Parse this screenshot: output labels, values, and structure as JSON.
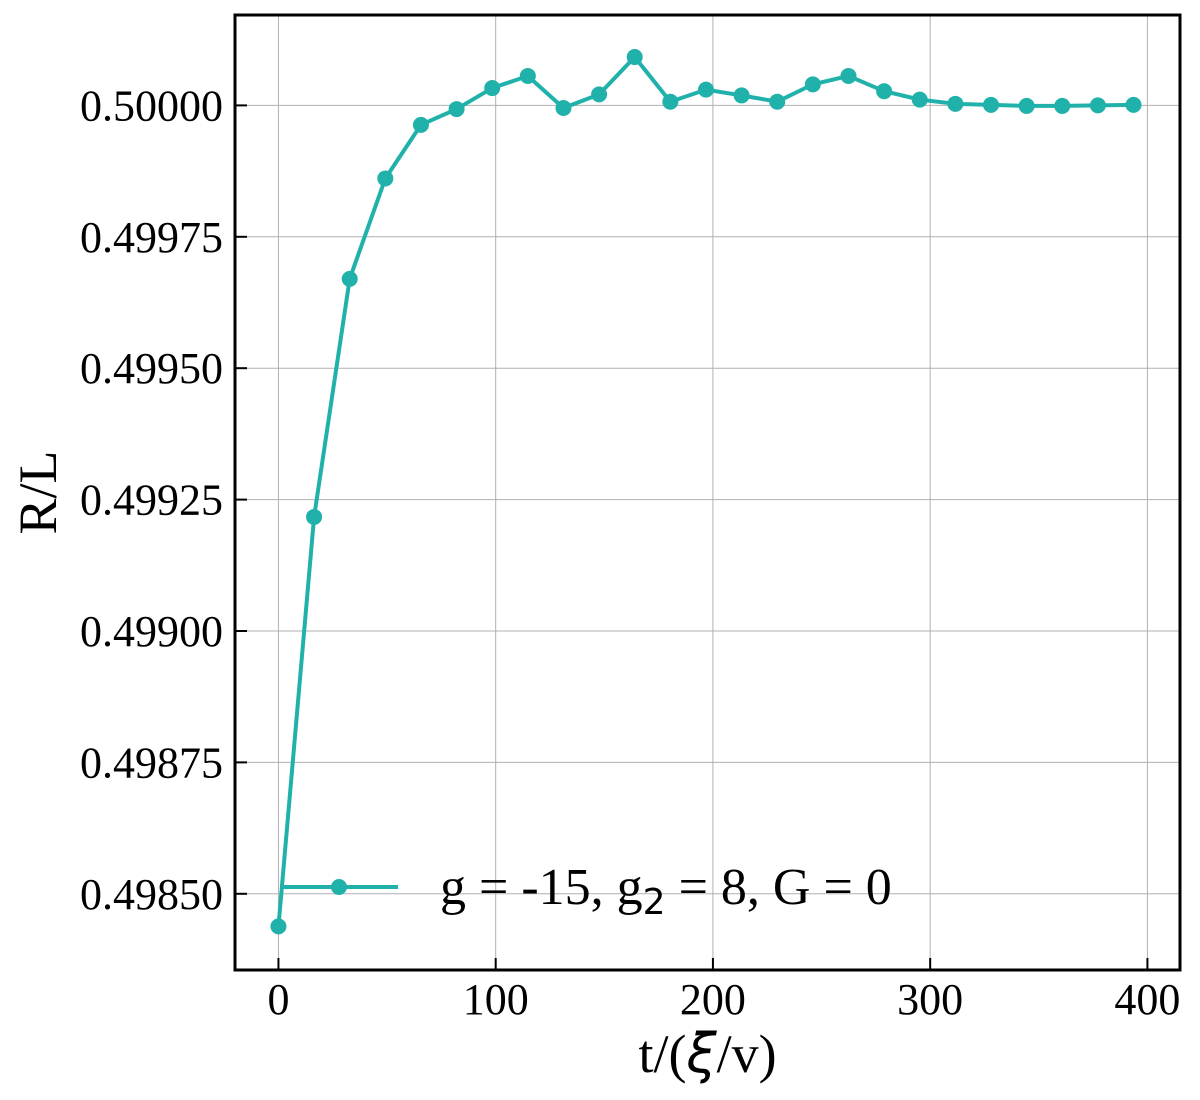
{
  "chart_data": {
    "type": "line",
    "title": "",
    "xlabel": "t/(ξ/v)",
    "ylabel": "R/L",
    "xlim": [
      -20,
      415
    ],
    "ylim": [
      0.498355,
      0.500172
    ],
    "x_ticks": [
      0,
      100,
      200,
      300,
      400
    ],
    "x_tick_labels": [
      "0",
      "100",
      "200",
      "300",
      "400"
    ],
    "y_ticks": [
      0.4985,
      0.49875,
      0.499,
      0.49925,
      0.4995,
      0.49975,
      0.5
    ],
    "y_tick_labels": [
      "0.49850",
      "0.49875",
      "0.49900",
      "0.49925",
      "0.49950",
      "0.49975",
      "0.50000"
    ],
    "grid": true,
    "legend_position": "bottom",
    "series": [
      {
        "name": "g = -15, g2 = 8, G = 0",
        "color": "#20b2aa",
        "marker": "circle",
        "x": [
          0,
          16.4,
          32.8,
          49.2,
          65.6,
          82,
          98.4,
          114.8,
          131.2,
          147.6,
          164,
          180.4,
          196.8,
          213.2,
          229.6,
          246,
          262.4,
          278.8,
          295.2,
          311.6,
          328,
          344.4,
          360.8,
          377.2,
          393.6
        ],
        "y": [
          0.498438,
          0.499217,
          0.49967,
          0.499861,
          0.499963,
          0.499993,
          0.500033,
          0.500056,
          0.499995,
          0.500021,
          0.500092,
          0.500007,
          0.50003,
          0.500019,
          0.500007,
          0.50004,
          0.500056,
          0.500027,
          0.500011,
          0.500003,
          0.500001,
          0.499999,
          0.499999,
          0.5,
          0.500001
        ]
      }
    ]
  },
  "legend": {
    "label_prefix": "g = -15, g",
    "label_sub": "2",
    "label_suffix": " = 8, G = 0"
  },
  "axes": {
    "xlabel_prefix": "t/(",
    "xlabel_symbol": "ξ",
    "xlabel_suffix": "/v)",
    "ylabel": "R/L"
  }
}
